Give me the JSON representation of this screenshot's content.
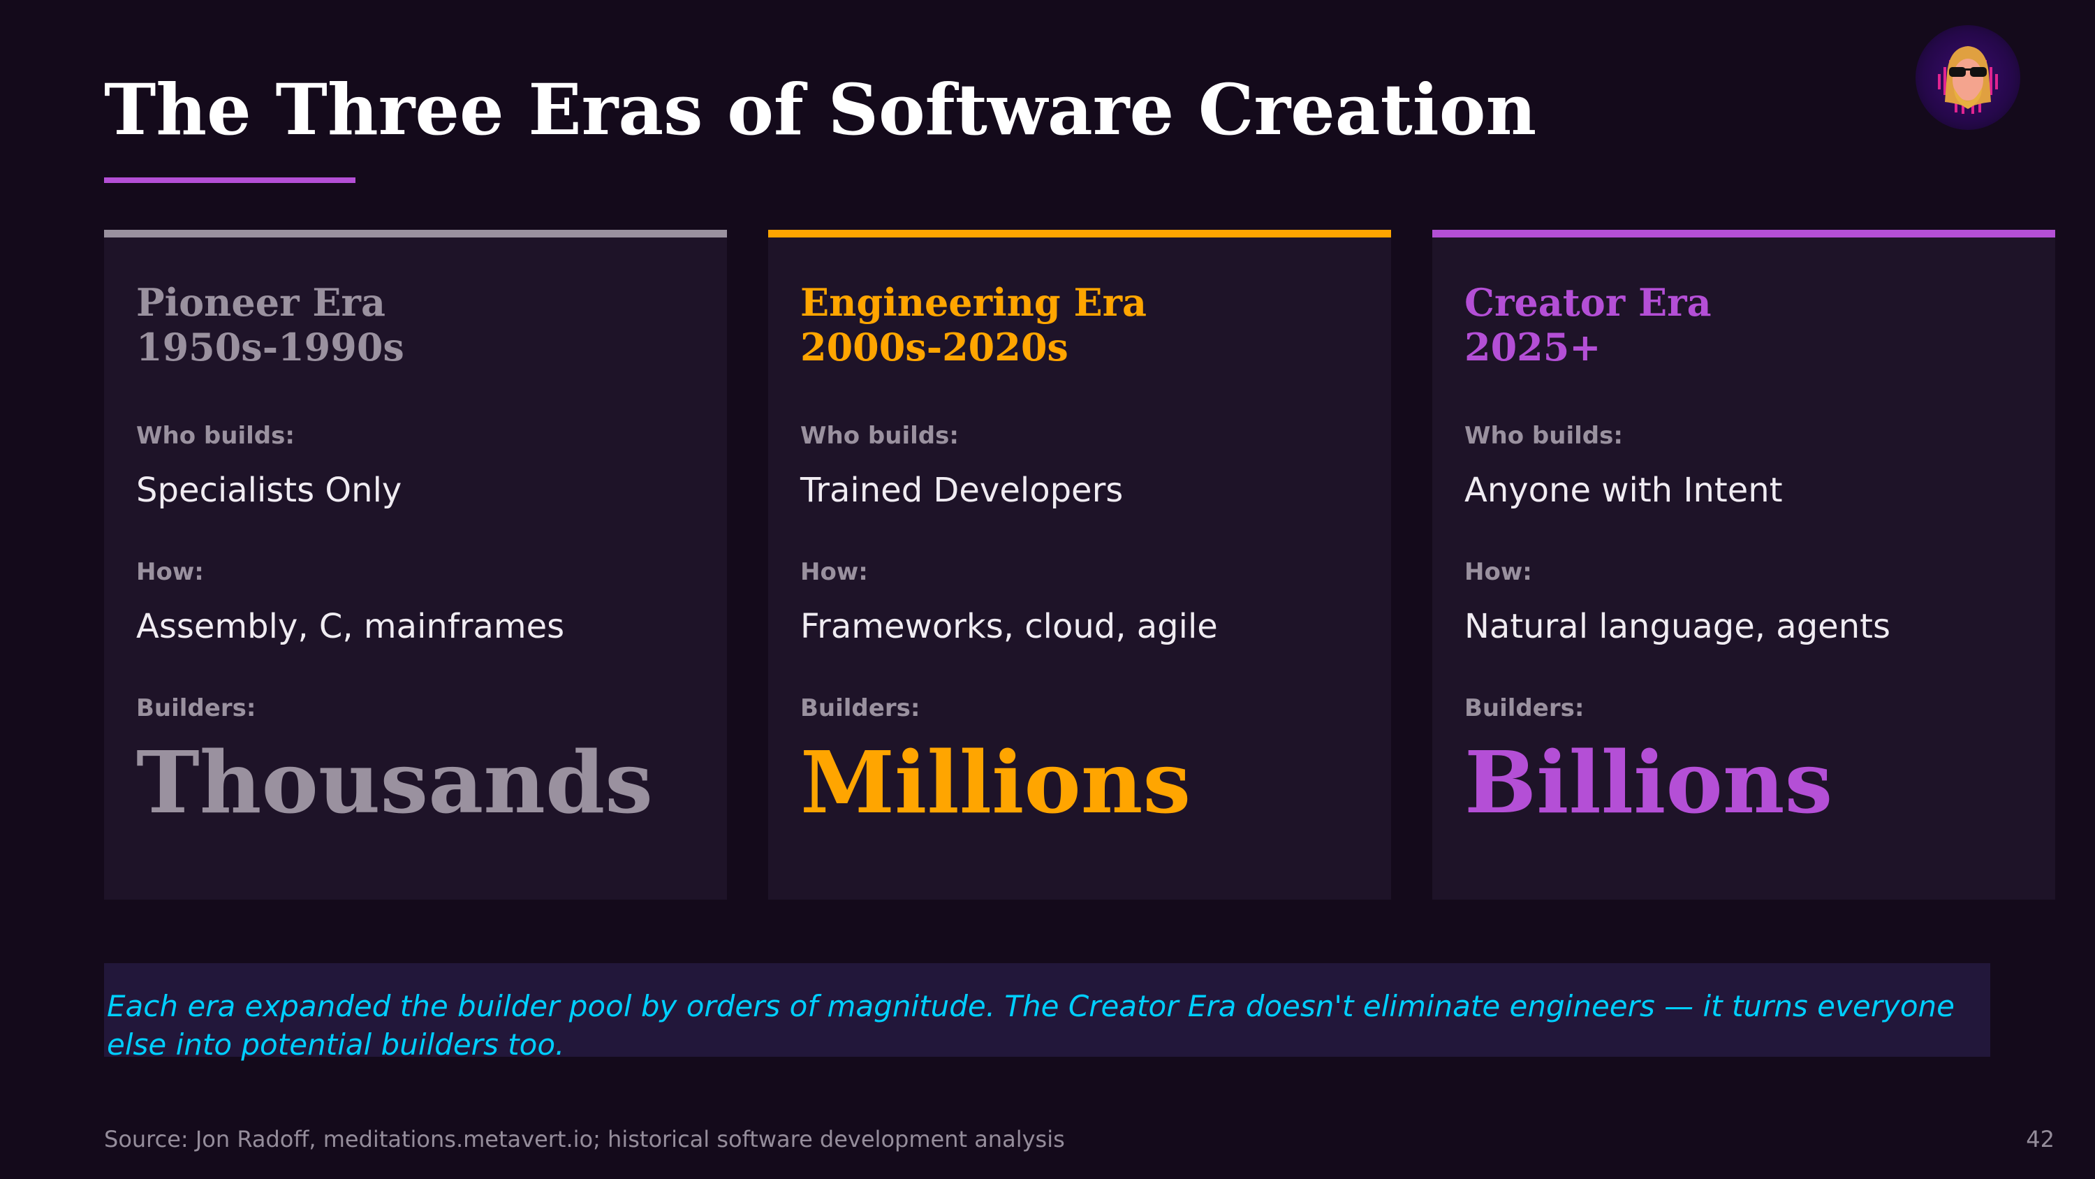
{
  "title": "The Three Eras of Software Creation",
  "colors": {
    "background": "#140a1b",
    "card": "#1e1328",
    "pioneer": "#9a919f",
    "engineering": "#ffa500",
    "creator": "#b44fd6",
    "callout_text": "#00cfff"
  },
  "avatar": {
    "icon": "avatar-bearded-man-sunglasses"
  },
  "labels": {
    "who": "Who builds:",
    "how": "How:",
    "builders": "Builders:"
  },
  "eras": [
    {
      "name": "Pioneer Era",
      "period": "1950s-1990s",
      "who": "Specialists Only",
      "how": "Assembly, C, mainframes",
      "builders": "Thousands",
      "color": "#9a919f"
    },
    {
      "name": "Engineering Era",
      "period": "2000s-2020s",
      "who": "Trained Developers",
      "how": "Frameworks, cloud, agile",
      "builders": "Millions",
      "color": "#ffa500"
    },
    {
      "name": "Creator Era",
      "period": "2025+",
      "who": "Anyone with Intent",
      "how": "Natural language, agents",
      "builders": "Billions",
      "color": "#b44fd6"
    }
  ],
  "callout": "Each era expanded the builder pool by orders of magnitude. The Creator Era doesn't eliminate engineers — it turns everyone else into potential builders too.",
  "source": "Source: Jon Radoff, meditations.metavert.io; historical software development analysis",
  "page_number": "42"
}
